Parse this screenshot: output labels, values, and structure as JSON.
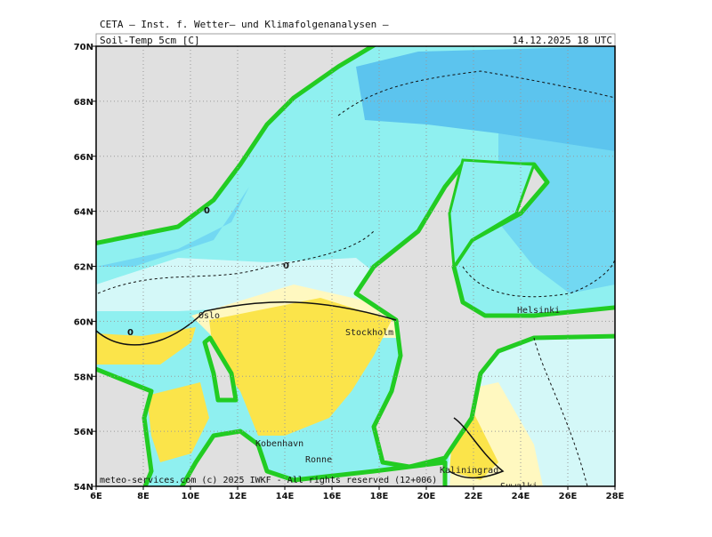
{
  "header": {
    "institute": "CETA – Inst. f. Wetter– und Klimafolgenanalysen –",
    "title": "Soil-Temp 5cm [C]",
    "datetime": "14.12.2025 18 UTC"
  },
  "map": {
    "lon_ticks": [
      {
        "value": 6,
        "label": "6E"
      },
      {
        "value": 8,
        "label": "8E"
      },
      {
        "value": 10,
        "label": "10E"
      },
      {
        "value": 12,
        "label": "12E"
      },
      {
        "value": 14,
        "label": "14E"
      },
      {
        "value": 16,
        "label": "16E"
      },
      {
        "value": 18,
        "label": "18E"
      },
      {
        "value": 20,
        "label": "20E"
      },
      {
        "value": 22,
        "label": "22E"
      },
      {
        "value": 24,
        "label": "24E"
      },
      {
        "value": 26,
        "label": "26E"
      },
      {
        "value": 28,
        "label": "28E"
      }
    ],
    "lat_ticks": [
      {
        "value": 70,
        "label": "70N"
      },
      {
        "value": 68,
        "label": "68N"
      },
      {
        "value": 66,
        "label": "66N"
      },
      {
        "value": 64,
        "label": "64N"
      },
      {
        "value": 62,
        "label": "62N"
      },
      {
        "value": 60,
        "label": "60N"
      },
      {
        "value": 58,
        "label": "58N"
      },
      {
        "value": 56,
        "label": "56N"
      },
      {
        "value": 54,
        "label": "54N"
      }
    ],
    "cities": [
      "Oslo",
      "Stockholm",
      "Helsinki",
      "Kobenhavn",
      "Ronne",
      "Kaliningrad",
      "Suwalki"
    ],
    "contour_labels": [
      "0",
      "0",
      "0"
    ]
  },
  "footer": "meteo-services.com (c) 2025 IWKF - All rights reserved (12+006)"
}
